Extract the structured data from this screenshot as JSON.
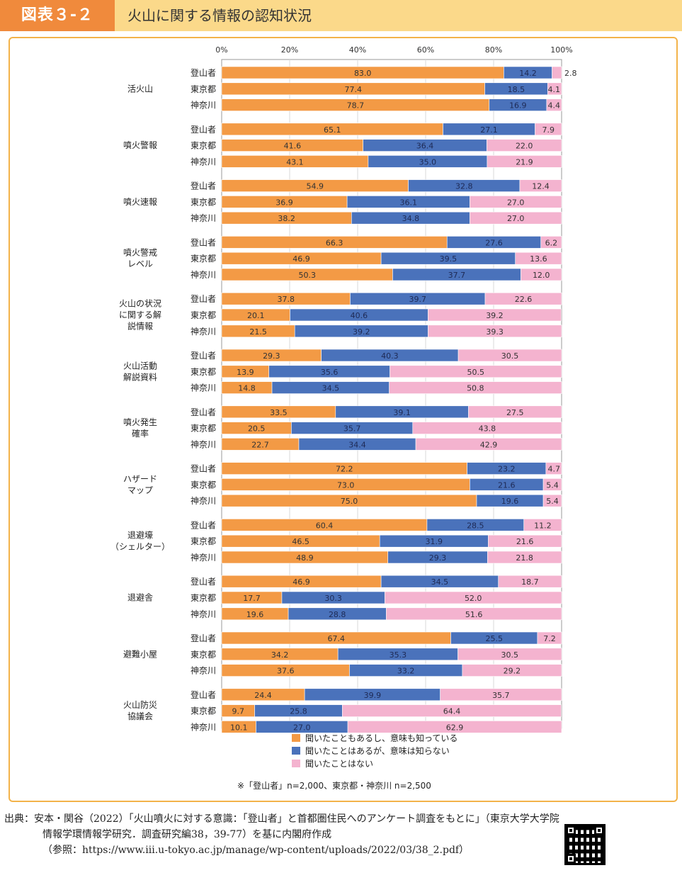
{
  "header": {
    "tag": "図表３-２",
    "title": "火山に関する情報の認知状況"
  },
  "colors": {
    "known": "#f39a45",
    "heard": "#4a72bb",
    "never": "#f4b3cf",
    "frame": "#f3b34a"
  },
  "chart_data": {
    "type": "bar",
    "orientation": "horizontal",
    "stacked": true,
    "xlim": [
      0,
      100
    ],
    "x_ticks": [
      "0%",
      "20%",
      "40%",
      "60%",
      "80%",
      "100%"
    ],
    "grid": true,
    "legend_position": "bottom",
    "respondents": [
      "登山者",
      "東京都",
      "神奈川"
    ],
    "series": [
      {
        "name": "聞いたこともあるし、意味も知っている",
        "color": "#f39a45"
      },
      {
        "name": "聞いたことはあるが、意味は知らない",
        "color": "#4a72bb"
      },
      {
        "name": "聞いたことはない",
        "color": "#f4b3cf"
      }
    ],
    "groups": [
      {
        "label": [
          "活火山"
        ],
        "rows": [
          [
            83.0,
            14.2,
            2.8
          ],
          [
            77.4,
            18.5,
            4.1
          ],
          [
            78.7,
            16.9,
            4.4
          ]
        ]
      },
      {
        "label": [
          "噴火警報"
        ],
        "rows": [
          [
            65.1,
            27.1,
            7.9
          ],
          [
            41.6,
            36.4,
            22.0
          ],
          [
            43.1,
            35.0,
            21.9
          ]
        ]
      },
      {
        "label": [
          "噴火速報"
        ],
        "rows": [
          [
            54.9,
            32.8,
            12.4
          ],
          [
            36.9,
            36.1,
            27.0
          ],
          [
            38.2,
            34.8,
            27.0
          ]
        ]
      },
      {
        "label": [
          "噴火警戒",
          "レベル"
        ],
        "rows": [
          [
            66.3,
            27.6,
            6.2
          ],
          [
            46.9,
            39.5,
            13.6
          ],
          [
            50.3,
            37.7,
            12.0
          ]
        ]
      },
      {
        "label": [
          "火山の状況",
          "に関する解",
          "説情報"
        ],
        "rows": [
          [
            37.8,
            39.7,
            22.6
          ],
          [
            20.1,
            40.6,
            39.2
          ],
          [
            21.5,
            39.2,
            39.3
          ]
        ]
      },
      {
        "label": [
          "火山活動",
          "解説資料"
        ],
        "rows": [
          [
            29.3,
            40.3,
            30.5
          ],
          [
            13.9,
            35.6,
            50.5
          ],
          [
            14.8,
            34.5,
            50.8
          ]
        ]
      },
      {
        "label": [
          "噴火発生",
          "確率"
        ],
        "rows": [
          [
            33.5,
            39.1,
            27.5
          ],
          [
            20.5,
            35.7,
            43.8
          ],
          [
            22.7,
            34.4,
            42.9
          ]
        ]
      },
      {
        "label": [
          "ハザード",
          "マップ"
        ],
        "rows": [
          [
            72.2,
            23.2,
            4.7
          ],
          [
            73.0,
            21.6,
            5.4
          ],
          [
            75.0,
            19.6,
            5.4
          ]
        ]
      },
      {
        "label": [
          "退避壕",
          "（シェルター）"
        ],
        "rows": [
          [
            60.4,
            28.5,
            11.2
          ],
          [
            46.5,
            31.9,
            21.6
          ],
          [
            48.9,
            29.3,
            21.8
          ]
        ]
      },
      {
        "label": [
          "退避舎"
        ],
        "rows": [
          [
            46.9,
            34.5,
            18.7
          ],
          [
            17.7,
            30.3,
            52.0
          ],
          [
            19.6,
            28.8,
            51.6
          ]
        ]
      },
      {
        "label": [
          "避難小屋"
        ],
        "rows": [
          [
            67.4,
            25.5,
            7.2
          ],
          [
            34.2,
            35.3,
            30.5
          ],
          [
            37.6,
            33.2,
            29.2
          ]
        ]
      },
      {
        "label": [
          "火山防災",
          "協議会"
        ],
        "rows": [
          [
            24.4,
            39.9,
            35.7
          ],
          [
            9.7,
            25.8,
            64.4
          ],
          [
            10.1,
            27.0,
            62.9
          ]
        ]
      }
    ],
    "note": "※「登山者」n=2,000、東京都・神奈川 n=2,500"
  },
  "source": {
    "line1": "出典：安本・関谷（2022）「火山噴火に対する意識：「登山者」と首都圏住民へのアンケート調査をもとに」（東京大学大学院",
    "line2": "情報学環情報学研究．調査研究編38，39-77）を基に内閣府作成",
    "line3": "（参照：https://www.iii.u-tokyo.ac.jp/manage/wp-content/uploads/2022/03/38_2.pdf）"
  }
}
